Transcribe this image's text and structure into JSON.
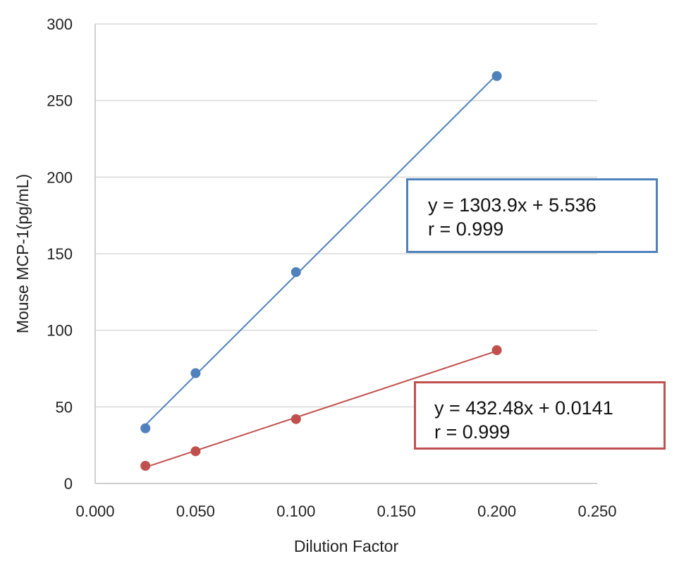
{
  "chart_data": {
    "type": "scatter",
    "xlabel": "Dilution Factor",
    "ylabel": "Mouse MCP-1(pg/mL)",
    "xlim": [
      0,
      0.25
    ],
    "ylim": [
      0,
      300
    ],
    "x_ticks": [
      "0.000",
      "0.050",
      "0.100",
      "0.150",
      "0.200",
      "0.250"
    ],
    "y_ticks": [
      "0",
      "50",
      "100",
      "150",
      "200",
      "250",
      "300"
    ],
    "grid": "horizontal",
    "series": [
      {
        "color": "#4f81bd",
        "trendline": "linear",
        "points": [
          {
            "x": 0.025,
            "y": 36
          },
          {
            "x": 0.05,
            "y": 72
          },
          {
            "x": 0.1,
            "y": 138
          },
          {
            "x": 0.2,
            "y": 266
          }
        ],
        "annotation": {
          "equation": "y = 1303.9x + 5.536",
          "r": "r = 0.999"
        }
      },
      {
        "color": "#c0504d",
        "trendline": "linear",
        "points": [
          {
            "x": 0.025,
            "y": 11.5
          },
          {
            "x": 0.05,
            "y": 21
          },
          {
            "x": 0.1,
            "y": 42
          },
          {
            "x": 0.2,
            "y": 87
          }
        ],
        "annotation": {
          "equation": "y = 432.48x + 0.0141",
          "r": "r = 0.999"
        }
      }
    ]
  }
}
